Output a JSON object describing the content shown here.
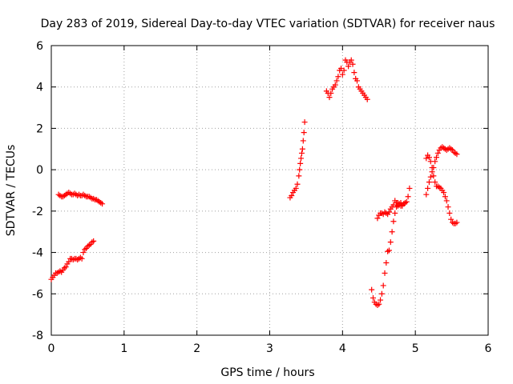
{
  "chart_data": {
    "type": "scatter",
    "title": "Day 283 of 2019, Sidereal Day-to-day VTEC variation (SDTVAR) for receiver naus",
    "xlabel": "GPS time / hours",
    "ylabel": "SDTVAR / TECUs",
    "xlim": [
      0,
      6
    ],
    "ylim": [
      -8,
      6
    ],
    "x_ticks": [
      0,
      1,
      2,
      3,
      4,
      5,
      6
    ],
    "y_ticks": [
      -8,
      -6,
      -4,
      -2,
      0,
      2,
      4,
      6
    ],
    "grid": true,
    "legend": "none",
    "marker": "+",
    "color": "#ff0000",
    "series": [
      {
        "x": [
          0.0,
          0.02,
          0.04,
          0.06,
          0.08,
          0.1,
          0.12,
          0.14,
          0.16,
          0.18,
          0.2,
          0.22,
          0.24,
          0.26,
          0.28,
          0.3,
          0.32,
          0.34,
          0.36,
          0.38,
          0.4,
          0.42,
          0.44,
          0.46,
          0.48,
          0.5,
          0.52,
          0.54,
          0.56,
          0.58
        ],
        "y": [
          -5.3,
          -5.2,
          -5.1,
          -5.0,
          -5.0,
          -4.95,
          -4.9,
          -4.95,
          -4.85,
          -4.75,
          -4.7,
          -4.55,
          -4.45,
          -4.3,
          -4.3,
          -4.35,
          -4.3,
          -4.3,
          -4.35,
          -4.3,
          -4.25,
          -4.3,
          -4.0,
          -3.85,
          -3.8,
          -3.7,
          -3.65,
          -3.6,
          -3.5,
          -3.45
        ]
      },
      {
        "x": [
          0.1,
          0.12,
          0.14,
          0.16,
          0.18,
          0.2,
          0.22,
          0.24,
          0.26,
          0.28,
          0.3,
          0.32,
          0.34,
          0.36,
          0.38,
          0.4,
          0.42,
          0.44,
          0.46,
          0.48,
          0.5,
          0.52,
          0.54,
          0.56,
          0.58,
          0.6,
          0.62,
          0.64,
          0.66,
          0.68,
          0.7
        ],
        "y": [
          -1.2,
          -1.25,
          -1.3,
          -1.3,
          -1.25,
          -1.2,
          -1.15,
          -1.1,
          -1.15,
          -1.2,
          -1.2,
          -1.15,
          -1.2,
          -1.25,
          -1.2,
          -1.25,
          -1.25,
          -1.2,
          -1.25,
          -1.3,
          -1.3,
          -1.3,
          -1.35,
          -1.4,
          -1.4,
          -1.45,
          -1.45,
          -1.5,
          -1.55,
          -1.6,
          -1.65
        ]
      },
      {
        "x": [
          3.28,
          3.3,
          3.32,
          3.34,
          3.36,
          3.38,
          3.4,
          3.41,
          3.42,
          3.43,
          3.44,
          3.45,
          3.46,
          3.47,
          3.48
        ],
        "y": [
          -1.35,
          -1.25,
          -1.1,
          -1.0,
          -0.9,
          -0.7,
          -0.3,
          0.0,
          0.3,
          0.55,
          0.8,
          1.0,
          1.4,
          1.8,
          2.3
        ]
      },
      {
        "x": [
          3.78,
          3.8,
          3.82,
          3.84,
          3.86,
          3.88,
          3.9,
          3.92,
          3.94,
          3.96,
          3.98,
          4.0,
          4.02,
          4.04,
          4.06,
          4.08,
          4.1,
          4.12,
          4.14,
          4.16,
          4.18,
          4.2,
          4.22,
          4.24,
          4.26,
          4.28,
          4.3,
          4.32,
          4.34
        ],
        "y": [
          3.8,
          3.7,
          3.5,
          3.7,
          3.9,
          4.0,
          4.1,
          4.3,
          4.5,
          4.8,
          4.9,
          4.6,
          4.8,
          5.3,
          5.2,
          5.0,
          5.2,
          5.3,
          5.1,
          4.7,
          4.4,
          4.3,
          4.0,
          3.9,
          3.8,
          3.7,
          3.6,
          3.5,
          3.4
        ]
      },
      {
        "x": [
          4.4,
          4.42,
          4.44,
          4.46,
          4.48,
          4.5,
          4.52,
          4.54,
          4.56,
          4.58,
          4.6,
          4.62,
          4.64,
          4.66,
          4.68,
          4.7,
          4.72,
          4.74,
          4.76,
          4.78,
          4.8,
          4.82
        ],
        "y": [
          -5.8,
          -6.2,
          -6.4,
          -6.5,
          -6.55,
          -6.5,
          -6.3,
          -6.0,
          -5.6,
          -5.0,
          -4.5,
          -3.95,
          -3.9,
          -3.5,
          -3.0,
          -2.5,
          -2.1,
          -1.8,
          -1.6,
          -1.7,
          -1.75,
          -1.75
        ]
      },
      {
        "x": [
          4.48,
          4.5,
          4.52,
          4.54,
          4.56,
          4.58,
          4.6,
          4.62,
          4.64,
          4.66,
          4.68,
          4.7,
          4.72,
          4.74,
          4.76,
          4.78,
          4.8,
          4.82,
          4.84,
          4.86,
          4.88,
          4.9,
          4.92
        ],
        "y": [
          -2.35,
          -2.2,
          -2.1,
          -2.1,
          -2.15,
          -2.05,
          -2.1,
          -2.15,
          -2.05,
          -1.9,
          -1.8,
          -1.7,
          -1.5,
          -1.6,
          -1.75,
          -1.65,
          -1.6,
          -1.7,
          -1.65,
          -1.6,
          -1.55,
          -1.3,
          -0.9
        ]
      },
      {
        "x": [
          5.15,
          5.17,
          5.19,
          5.21,
          5.23,
          5.25,
          5.27,
          5.29,
          5.31,
          5.33,
          5.35,
          5.37,
          5.39,
          5.41,
          5.43,
          5.45,
          5.47,
          5.49,
          5.51,
          5.53,
          5.55,
          5.57
        ],
        "y": [
          0.55,
          0.7,
          0.6,
          0.4,
          0.1,
          -0.3,
          -0.6,
          -0.8,
          -0.8,
          -0.85,
          -0.9,
          -1.0,
          -1.1,
          -1.3,
          -1.5,
          -1.8,
          -2.1,
          -2.4,
          -2.55,
          -2.6,
          -2.6,
          -2.55
        ]
      },
      {
        "x": [
          5.15,
          5.17,
          5.19,
          5.21,
          5.23,
          5.25,
          5.27,
          5.29,
          5.31,
          5.33,
          5.35,
          5.37,
          5.39,
          5.41,
          5.43,
          5.45,
          5.47,
          5.49,
          5.51,
          5.53,
          5.55,
          5.57
        ],
        "y": [
          -1.2,
          -0.9,
          -0.6,
          -0.35,
          -0.1,
          0.1,
          0.4,
          0.6,
          0.8,
          0.95,
          1.05,
          1.1,
          1.05,
          1.0,
          0.95,
          1.0,
          1.05,
          1.0,
          0.95,
          0.85,
          0.8,
          0.75
        ]
      }
    ]
  }
}
